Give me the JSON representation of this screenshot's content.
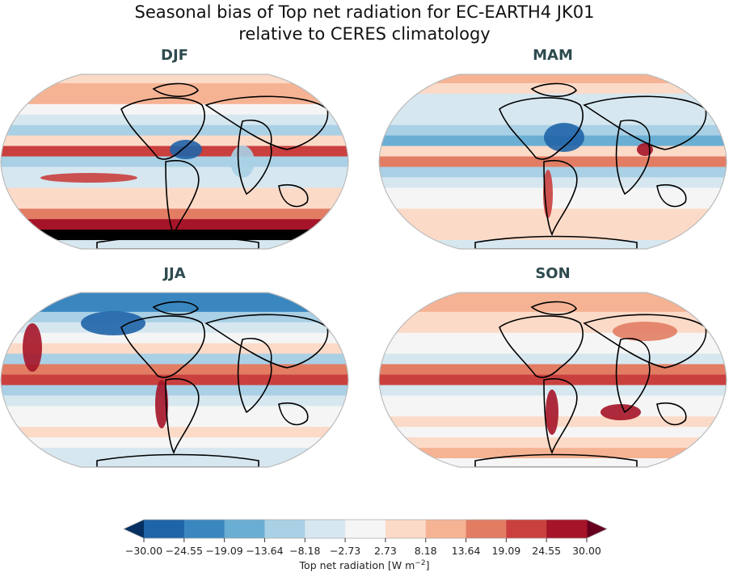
{
  "title": {
    "line1": "Seasonal bias of Top net radiation for EC-EARTH4 JK01",
    "line2": "relative to CERES climatology"
  },
  "panels": [
    {
      "label": "DJF",
      "bands": [
        6,
        7,
        7,
        5,
        4,
        3,
        6,
        9,
        3,
        4,
        4,
        6,
        6,
        8,
        10,
        11,
        4
      ]
    },
    {
      "label": "MAM",
      "bands": [
        7,
        6,
        4,
        4,
        4,
        3,
        2,
        6,
        8,
        3,
        4,
        5,
        5,
        6,
        6,
        6,
        4
      ]
    },
    {
      "label": "JJA",
      "bands": [
        1,
        1,
        3,
        4,
        5,
        6,
        3,
        8,
        9,
        3,
        4,
        5,
        5,
        6,
        5,
        4,
        4
      ]
    },
    {
      "label": "SON",
      "bands": [
        7,
        7,
        6,
        6,
        5,
        5,
        4,
        8,
        9,
        4,
        5,
        5,
        6,
        5,
        6,
        7,
        5
      ]
    }
  ],
  "colorbar": {
    "label": "Top net radiation [W m",
    "label_sup": "−2",
    "label_end": "]",
    "ticks": [
      "−30.00",
      "−24.55",
      "−19.09",
      "−13.64",
      "−8.18",
      "−2.73",
      "2.73",
      "8.18",
      "13.64",
      "19.09",
      "24.55",
      "30.00"
    ],
    "extend_low_color": "#053061",
    "extend_high_color": "#67001f",
    "colors": [
      "#2064a8",
      "#3a87c0",
      "#6aafd3",
      "#a9d0e5",
      "#d6e7f0",
      "#f5f5f5",
      "#fcdac8",
      "#f6b394",
      "#e27d64",
      "#c9403e",
      "#a51428"
    ],
    "range": [
      -30,
      30
    ],
    "extend": "both"
  }
}
